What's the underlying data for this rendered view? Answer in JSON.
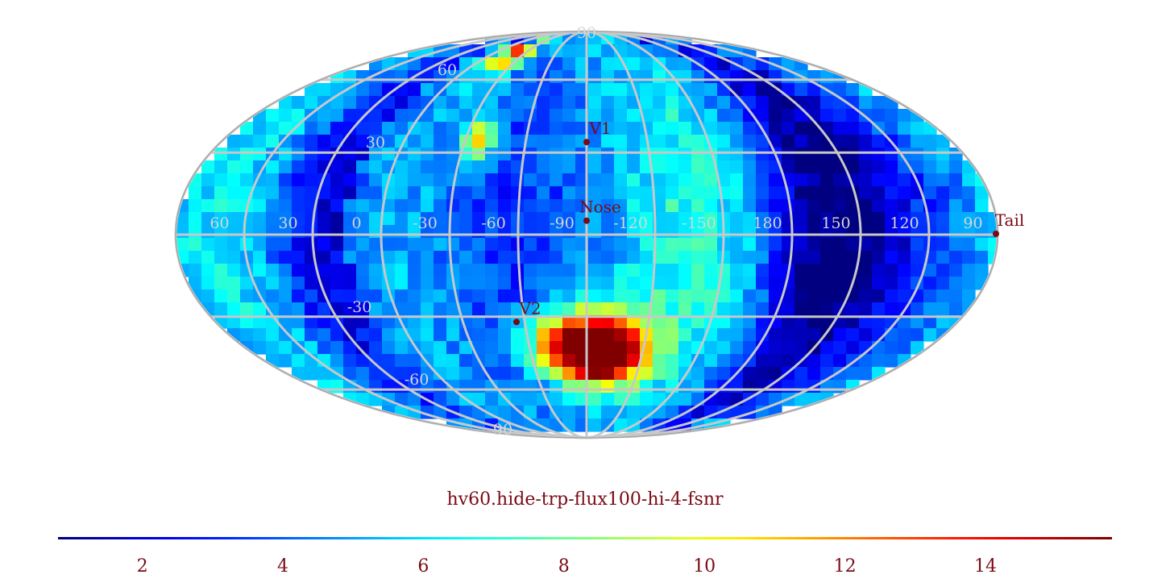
{
  "title": "hv60.hide-trp-flux100-hi-4-fsnr",
  "projection": "mollweide",
  "colormap": "jet",
  "colors": {
    "grid": "#c8c8c8",
    "grid_label": "#d6d6d6",
    "marker": "#7a0a14",
    "text": "#7a0a14"
  },
  "colorbar": {
    "min": 0.8,
    "max": 15.8,
    "ticks": [
      {
        "value": 2,
        "label": "2"
      },
      {
        "value": 4,
        "label": "4"
      },
      {
        "value": 6,
        "label": "6"
      },
      {
        "value": 8,
        "label": "8"
      },
      {
        "value": 10,
        "label": "10"
      },
      {
        "value": 12,
        "label": "12"
      },
      {
        "value": 14,
        "label": "14"
      }
    ]
  },
  "grid": {
    "longitude_labels": [
      "60",
      "30",
      "0",
      "-30",
      "-60",
      "-90",
      "-120",
      "-150",
      "180",
      "150",
      "120",
      "90"
    ],
    "latitude_labels": [
      {
        "lat": 90,
        "label": "90"
      },
      {
        "lat": 60,
        "label": "60"
      },
      {
        "lat": 30,
        "label": "30"
      },
      {
        "lat": -30,
        "label": "-30"
      },
      {
        "lat": -60,
        "label": "-60"
      },
      {
        "lat": -90,
        "label": "90"
      }
    ]
  },
  "markers": [
    {
      "name": "nose",
      "label": "Nose",
      "lon": 255,
      "lat": 5
    },
    {
      "name": "v1",
      "label": "V1",
      "lon": 255,
      "lat": 34
    },
    {
      "name": "v2",
      "label": "V2",
      "lon": 289,
      "lat": -32
    },
    {
      "name": "tail",
      "label": "Tail",
      "lon": 75,
      "lat": -5
    }
  ],
  "chart_data": {
    "type": "heatmap",
    "title": "hv60.hide-trp-flux100-hi-4-fsnr",
    "projection": "mollweide",
    "colorscale": "jet",
    "value_range": [
      0.8,
      15.8
    ],
    "background_level": 5.2,
    "features": [
      {
        "desc": "high ribbon",
        "lon": 265,
        "lat": -42,
        "dlon": 14,
        "dlat": 10,
        "peak": 15.5
      },
      {
        "desc": "high ribbon",
        "lon": 238,
        "lat": -44,
        "dlon": 14,
        "dlat": 10,
        "peak": 14.5
      },
      {
        "desc": "high ribbon",
        "lon": 250,
        "lat": -42,
        "dlon": 8,
        "dlat": 8,
        "peak": 11.0
      },
      {
        "desc": "upper hot spot",
        "lon": 308,
        "lat": 35,
        "dlon": 5,
        "dlat": 6,
        "peak": 12.0
      },
      {
        "desc": "polar hot spot",
        "lon": 325,
        "lat": 75,
        "dlon": 12,
        "dlat": 8,
        "peak": 12.5
      },
      {
        "desc": "low band",
        "lon": 15,
        "lat": 0,
        "dlon": 20,
        "dlat": 70,
        "peak": 1.5
      },
      {
        "desc": "low band",
        "lon": 150,
        "lat": 0,
        "dlon": 22,
        "dlat": 75,
        "peak": 1.5
      }
    ]
  }
}
